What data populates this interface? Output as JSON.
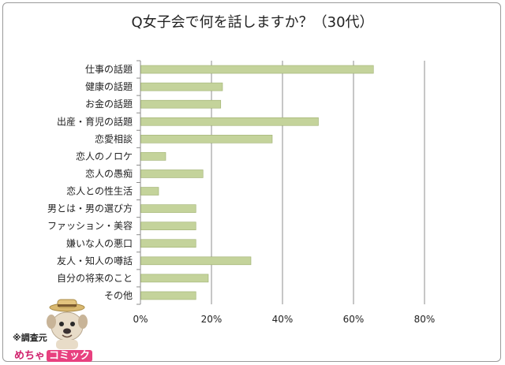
{
  "chart_data": {
    "type": "bar",
    "orientation": "horizontal",
    "title": "Q女子会で何を話しますか？（30代）",
    "categories": [
      "仕事の話題",
      "健康の話題",
      "お金の話題",
      "出産・育児の話題",
      "恋愛相談",
      "恋人のノロケ",
      "恋人の愚痴",
      "恋人との性生活",
      "男とは・男の選び方",
      "ファッション・美容",
      "嫌いな人の悪口",
      "友人・知人の噂話",
      "自分の将来のこと",
      "その他"
    ],
    "values": [
      65.5,
      23,
      22.5,
      50,
      37,
      7,
      17.5,
      5,
      15.5,
      15.5,
      15.5,
      31,
      19,
      15.5
    ],
    "x_ticks": [
      "0%",
      "20%",
      "40%",
      "60%",
      "80%"
    ],
    "xlim": [
      0,
      80
    ],
    "grid": true,
    "bar_color": "#c4d39b",
    "bar_border_color": "#9fb070"
  },
  "credit": {
    "label": "※調査元",
    "brand_part1": "めちゃ",
    "brand_part2": "コミック"
  }
}
